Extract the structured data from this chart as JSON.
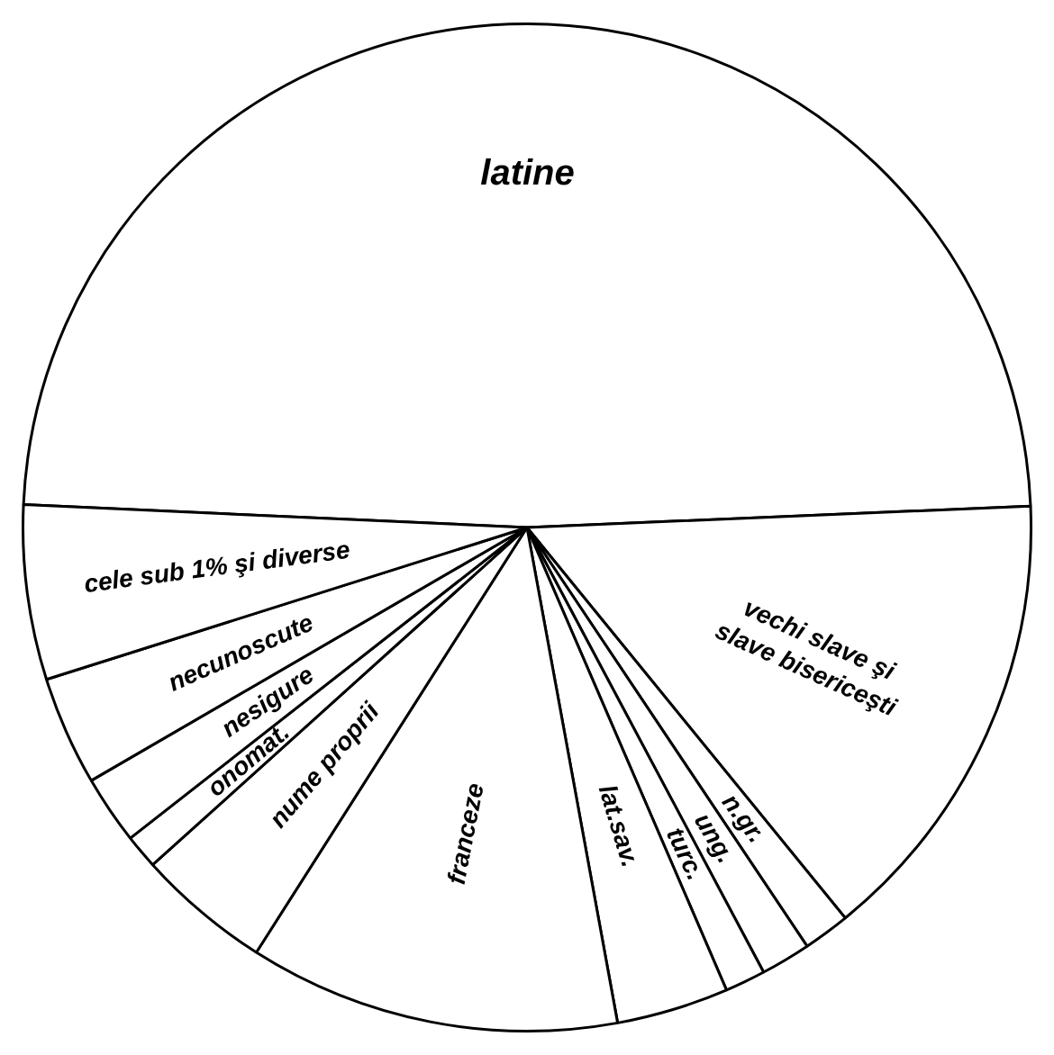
{
  "chart_data": {
    "type": "pie",
    "categories": [
      "latine",
      "vechi slave şi slave bisericeşti",
      "n.gr.",
      "ung.",
      "turc.",
      "lat.sav.",
      "franceze",
      "nume proprii",
      "onomat.",
      "nesigure",
      "necunoscute",
      "cele sub 1% şi diverse"
    ],
    "values": [
      48.6,
      14.8,
      1.5,
      1.6,
      1.3,
      3.6,
      11.9,
      4.3,
      1.1,
      2.2,
      3.5,
      5.6
    ],
    "colors": [
      "#ffffff",
      "#ffffff",
      "#ffffff",
      "#ffffff",
      "#ffffff",
      "#ffffff",
      "#ffffff",
      "#ffffff",
      "#ffffff",
      "#ffffff",
      "#ffffff",
      "#ffffff"
    ],
    "legend": false
  }
}
